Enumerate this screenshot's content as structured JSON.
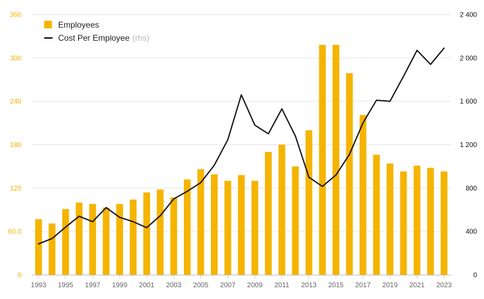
{
  "chart_data": {
    "type": "bar",
    "title": "",
    "xlabel": "",
    "ylabel": "",
    "y2label": "",
    "x": [
      1993,
      1994,
      1995,
      1996,
      1997,
      1998,
      1999,
      2000,
      2001,
      2002,
      2003,
      2004,
      2005,
      2006,
      2007,
      2008,
      2009,
      2010,
      2011,
      2012,
      2013,
      2014,
      2015,
      2016,
      2017,
      2018,
      2019,
      2020,
      2021,
      2022,
      2023
    ],
    "series": [
      {
        "name": "Employees",
        "type": "bar",
        "axis": "left",
        "color": "#F5B400",
        "values": [
          77,
          71,
          91,
          100,
          98,
          93,
          98,
          104,
          114,
          118,
          107,
          132,
          146,
          139,
          130,
          138,
          130,
          170,
          180,
          150,
          200,
          318,
          318,
          279,
          221,
          166,
          154,
          143,
          151,
          148,
          143
        ]
      },
      {
        "name": "Cost Per Employee",
        "type": "line",
        "axis": "right",
        "color": "#111111",
        "values": [
          285,
          335,
          440,
          540,
          490,
          620,
          530,
          490,
          435,
          545,
          700,
          770,
          850,
          1010,
          1245,
          1660,
          1380,
          1300,
          1530,
          1280,
          900,
          815,
          920,
          1110,
          1400,
          1610,
          1600,
          1830,
          2070,
          1940,
          2090
        ]
      }
    ],
    "legend": {
      "position": "top-left",
      "items": [
        {
          "label": "Employees",
          "note": "",
          "color": "#F5B400",
          "marker": "square"
        },
        {
          "label": "Cost Per Employee",
          "note": "(rhs)",
          "color": "#111111",
          "marker": "line"
        }
      ]
    },
    "ylim": [
      0,
      360
    ],
    "y2lim": [
      0,
      2400
    ],
    "y_ticks": [
      "0",
      "60.0",
      "120",
      "180",
      "240",
      "300",
      "360"
    ],
    "y2_ticks": [
      "0",
      "400",
      "800",
      "1 200",
      "1 600",
      "2 000",
      "2 400"
    ],
    "x_tick_labels": [
      "1993",
      "1995",
      "1997",
      "1999",
      "2001",
      "2003",
      "2005",
      "2007",
      "2009",
      "2011",
      "2013",
      "2015",
      "2017",
      "2019",
      "2021",
      "2023"
    ],
    "grid": true,
    "colors": {
      "bar": "#F5B400",
      "line": "#111111",
      "left_axis_text": "#F2B400",
      "right_axis_text": "#111111",
      "x_axis_text": "#666666",
      "grid": "#e6e6e6"
    }
  }
}
